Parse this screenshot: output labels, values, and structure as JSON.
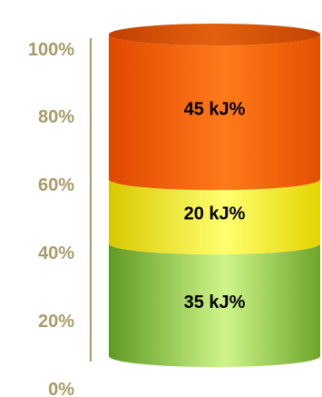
{
  "chart_data": {
    "type": "bar",
    "stacked": true,
    "style": "3d-cylinder",
    "ylim": [
      0,
      100
    ],
    "y_ticks": [
      "0%",
      "20%",
      "40%",
      "60%",
      "80%",
      "100%"
    ],
    "tick_values": [
      0,
      20,
      40,
      60,
      80,
      100
    ],
    "segments": [
      {
        "value": 35,
        "label": "35 kJ%",
        "color": "#8ccc3c"
      },
      {
        "value": 20,
        "label": "20 kJ%",
        "color": "#f2ec00"
      },
      {
        "value": 45,
        "label": "45 kJ%",
        "color": "#f07010"
      }
    ],
    "axis_color": "#a89a6a",
    "grid": false
  }
}
